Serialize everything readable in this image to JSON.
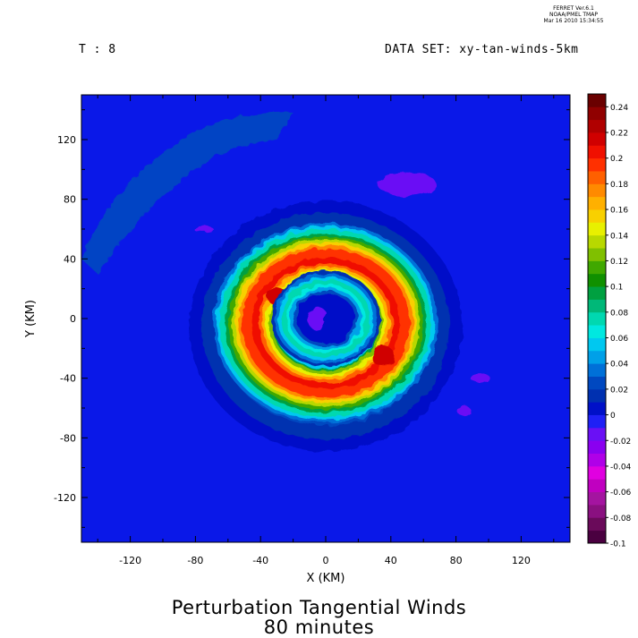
{
  "header": {
    "credit_line1": "FERRET  Ver.6.1",
    "credit_line2": "NOAA/PMEL TMAP",
    "credit_line3": "Mar 16 2010 15:34:55",
    "time_label": "T : 8",
    "dataset_label": "DATA SET: xy-tan-winds-5km"
  },
  "title": {
    "line1": "Perturbation Tangential Winds",
    "line2": "80 minutes"
  },
  "chart_data": {
    "type": "heatmap",
    "xlabel": "X (KM)",
    "ylabel": "Y (KM)",
    "xlim": [
      -150,
      150
    ],
    "ylim": [
      -150,
      150
    ],
    "xticks": [
      -120,
      -80,
      -40,
      0,
      40,
      80,
      120
    ],
    "yticks": [
      -120,
      -80,
      -40,
      0,
      40,
      80,
      120
    ],
    "colorbar": {
      "min": -0.1,
      "max": 0.25,
      "step": 0.01,
      "tick_labels": [
        "0.24",
        "0.22",
        "0.2",
        "0.18",
        "0.16",
        "0.14",
        "0.12",
        "0.1",
        "0.08",
        "0.06",
        "0.04",
        "0.02",
        "0",
        "-0.02",
        "-0.04",
        "-0.06",
        "-0.08",
        "-0.1"
      ],
      "colors": [
        "#4a0040",
        "#6a0a5a",
        "#8a1080",
        "#a414a0",
        "#c000c0",
        "#e000e0",
        "#b000e8",
        "#8a00f0",
        "#6a10f5",
        "#1f20f5",
        "#0010c8",
        "#0030b0",
        "#0048c0",
        "#0070d8",
        "#00a0e8",
        "#00c8f0",
        "#00e8e0",
        "#00d8b0",
        "#00b878",
        "#00a040",
        "#109000",
        "#40a800",
        "#80c000",
        "#b8d800",
        "#e8f000",
        "#f8d000",
        "#ffb000",
        "#ff8a00",
        "#ff6000",
        "#ff3000",
        "#f01000",
        "#d00000",
        "#b00000",
        "#900000",
        "#6a0000"
      ]
    },
    "field": {
      "background": 0,
      "features": [
        {
          "name": "core",
          "center": [
            -5,
            0
          ],
          "radius_km": 8,
          "value": -0.02
        },
        {
          "name": "inner-ring",
          "center": [
            0,
            0
          ],
          "inner_radius_km": 18,
          "outer_radius_km": 30,
          "value": 0.06
        },
        {
          "name": "outer-ring-peak",
          "center": [
            0,
            -3
          ],
          "inner_radius_km": 34,
          "outer_radius_km": 58,
          "value": 0.2
        },
        {
          "name": "outer-ring-edge",
          "center": [
            0,
            -3
          ],
          "inner_radius_km": 58,
          "outer_radius_km": 65,
          "value": 0.08
        },
        {
          "name": "weak-halo",
          "center": [
            0,
            -5
          ],
          "inner_radius_km": 65,
          "outer_radius_km": 80,
          "value": 0.02
        },
        {
          "name": "northwest-band",
          "center": [
            -110,
            80
          ],
          "value": 0.02
        },
        {
          "name": "northeast-patch",
          "center": [
            50,
            90
          ],
          "value": -0.02
        },
        {
          "name": "east-patch",
          "center": [
            95,
            -40
          ],
          "value": -0.02
        }
      ]
    }
  }
}
